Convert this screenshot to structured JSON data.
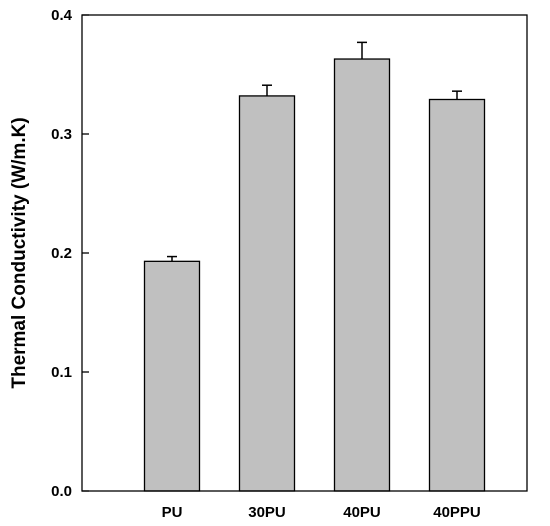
{
  "chart_data": {
    "type": "bar",
    "title": "",
    "xlabel": "",
    "ylabel": "Thermal Conductivity (W/m.K)",
    "categories": [
      "PU",
      "30PU",
      "40PU",
      "40PPU"
    ],
    "values": [
      0.193,
      0.332,
      0.363,
      0.329
    ],
    "error": [
      0.004,
      0.009,
      0.014,
      0.007
    ],
    "ylim": [
      0.0,
      0.4
    ],
    "yticks": [
      0.0,
      0.1,
      0.2,
      0.3,
      0.4
    ],
    "ytick_labels": [
      "0.0",
      "0.1",
      "0.2",
      "0.3",
      "0.4"
    ],
    "grid": false,
    "legend": "none",
    "colors": {
      "bar_fill": "#c0c0c0",
      "bar_stroke": "#000000",
      "axis": "#000000",
      "background": "#ffffff"
    }
  }
}
